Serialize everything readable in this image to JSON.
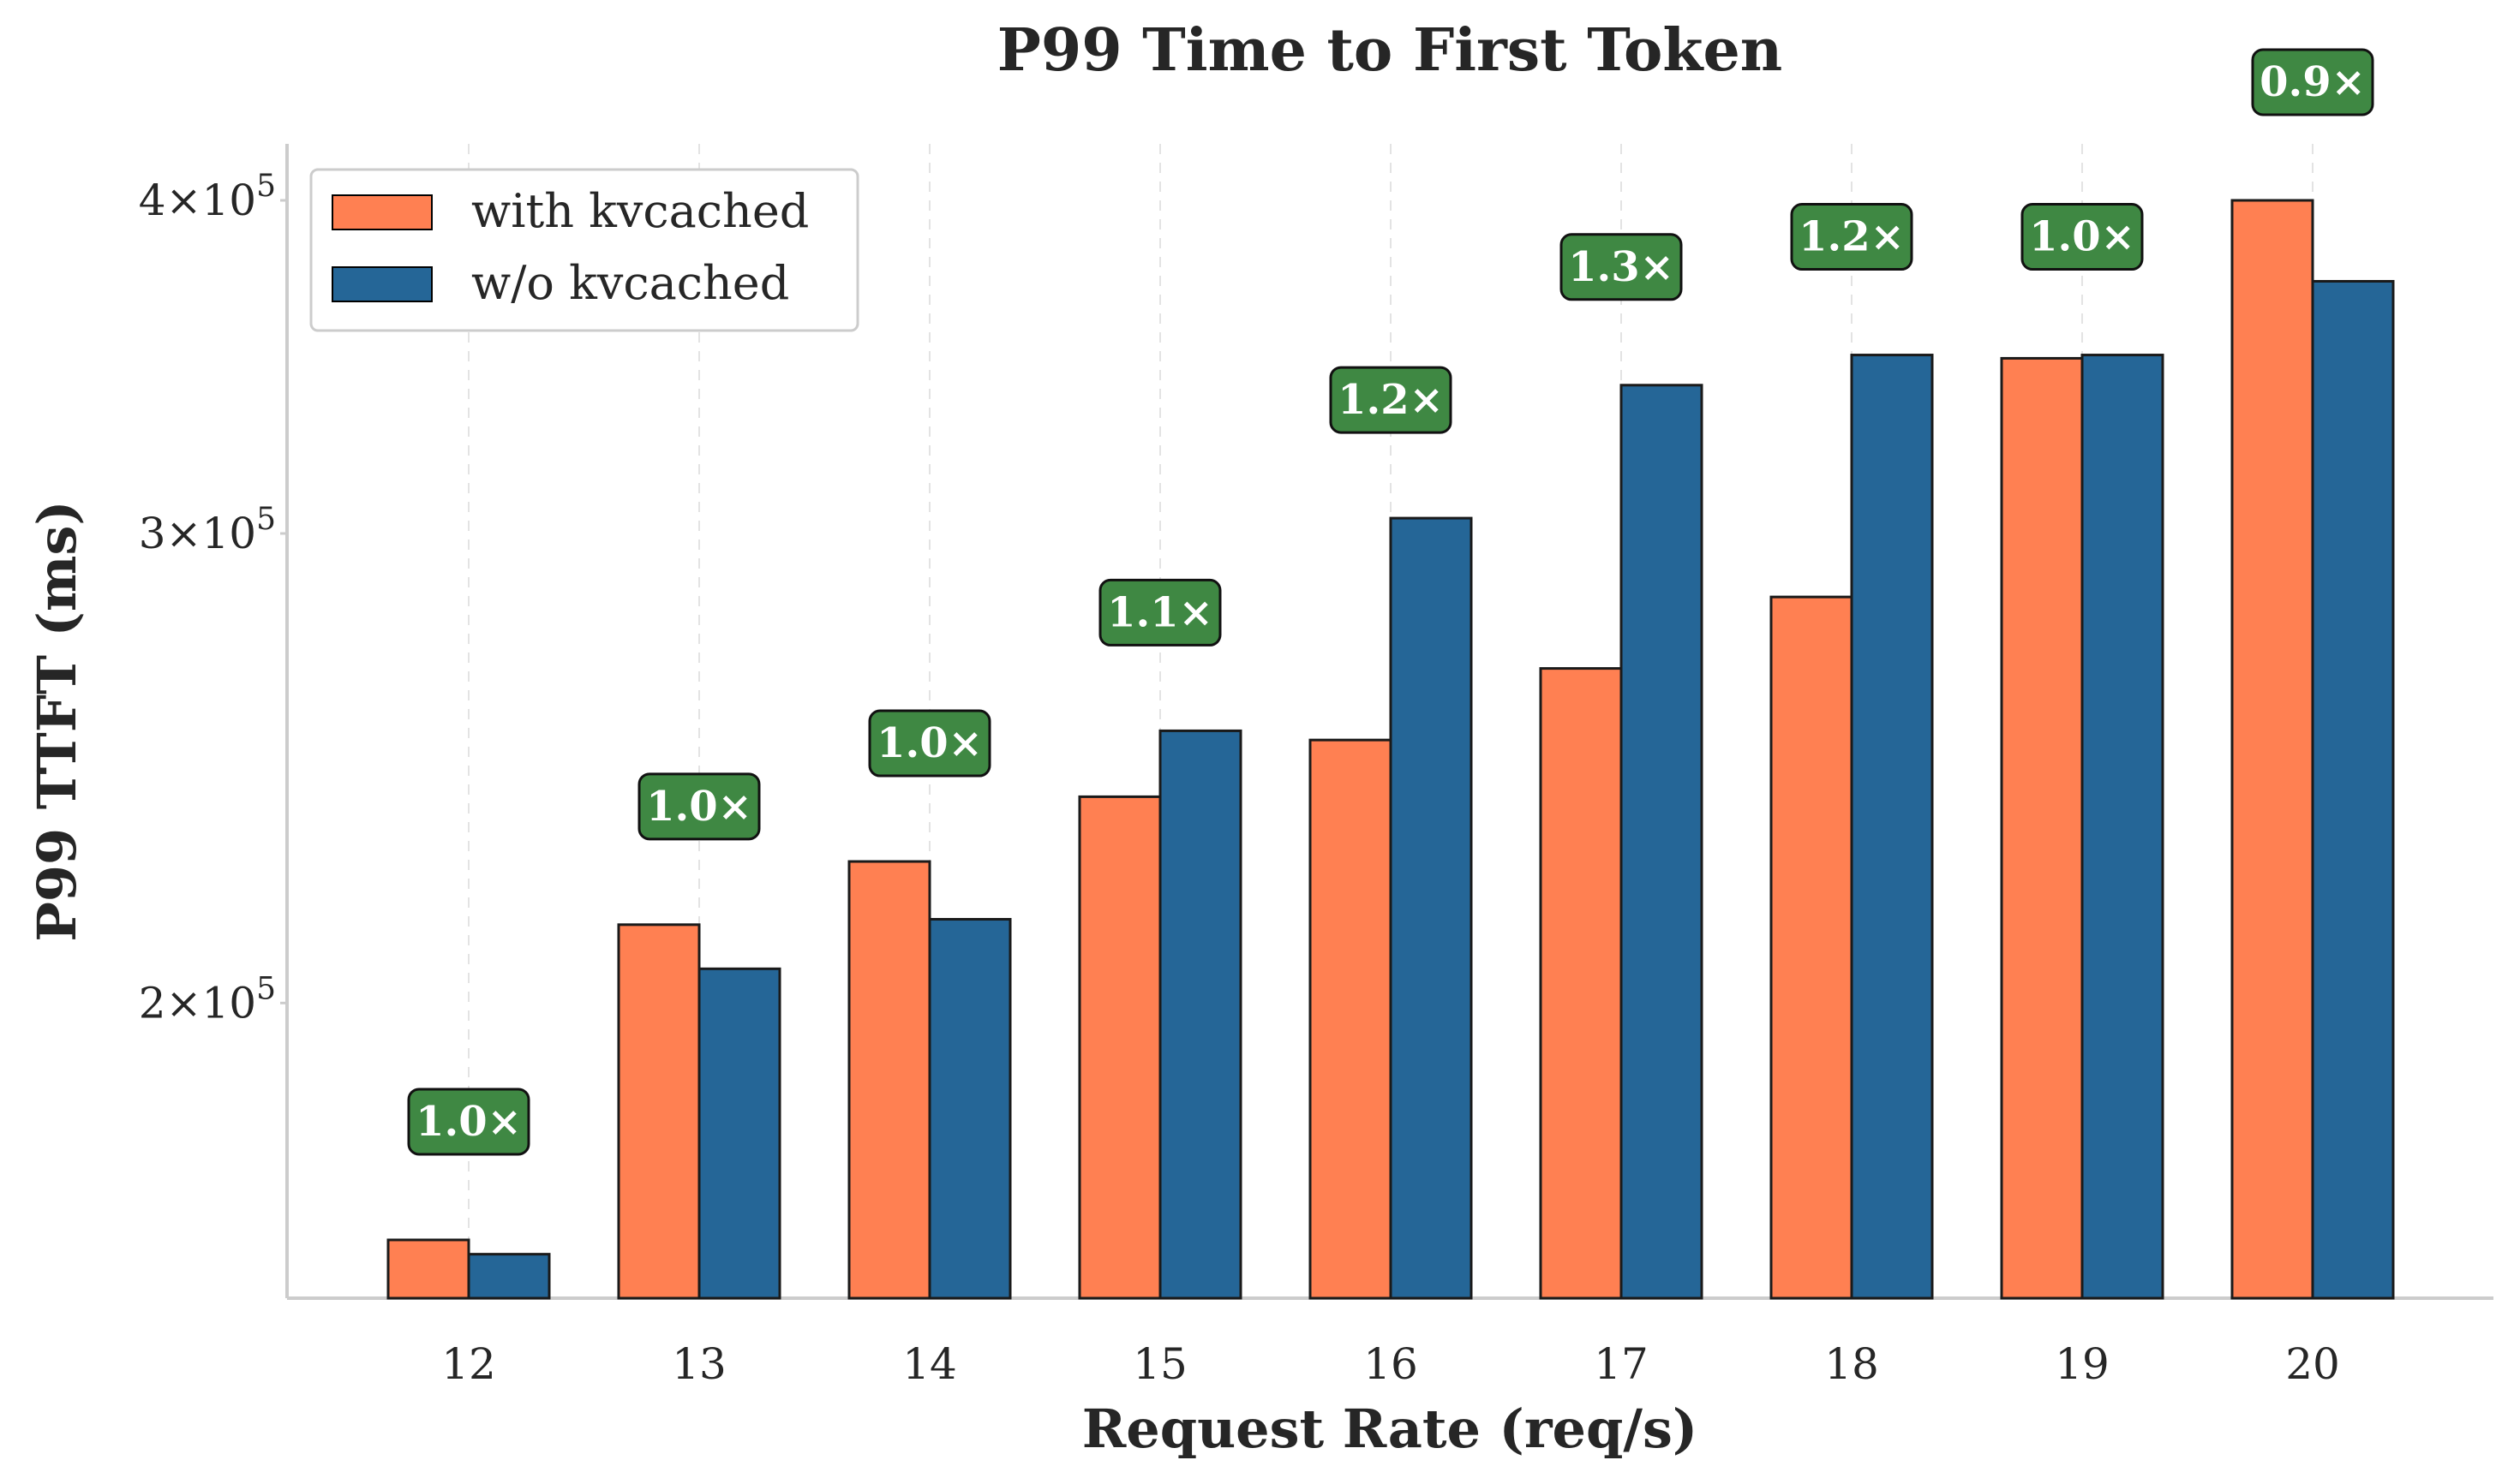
{
  "chart_data": {
    "type": "bar",
    "title": "P99 Time to First Token",
    "xlabel": "Request Rate (req/s)",
    "ylabel": "P99 TTFT (ms)",
    "y_scale": "log",
    "ylim": [
      155000,
      420000
    ],
    "categories": [
      "12",
      "13",
      "14",
      "15",
      "16",
      "17",
      "18",
      "19",
      "20"
    ],
    "series": [
      {
        "name": "with kvcached",
        "color": "#ff8052",
        "values": [
          163000,
          214000,
          226000,
          239000,
          251000,
          267000,
          284000,
          349000,
          400000
        ]
      },
      {
        "name": "w/o kvcached",
        "color": "#256697",
        "values": [
          161000,
          206000,
          215000,
          253000,
          304000,
          341000,
          350000,
          350000,
          373000
        ]
      }
    ],
    "annotations": [
      "1.0×",
      "1.0×",
      "1.0×",
      "1.1×",
      "1.2×",
      "1.3×",
      "1.2×",
      "1.0×",
      "0.9×"
    ],
    "annotation_color": "#3f8843",
    "y_ticks": [
      {
        "value": 200000,
        "base": "2",
        "exp": "5"
      },
      {
        "value": 300000,
        "base": "3",
        "exp": "5"
      },
      {
        "value": 400000,
        "base": "4",
        "exp": "5"
      }
    ],
    "tick_times": "×10",
    "legend_position": "top-left",
    "grid": "vertical-dashed"
  }
}
